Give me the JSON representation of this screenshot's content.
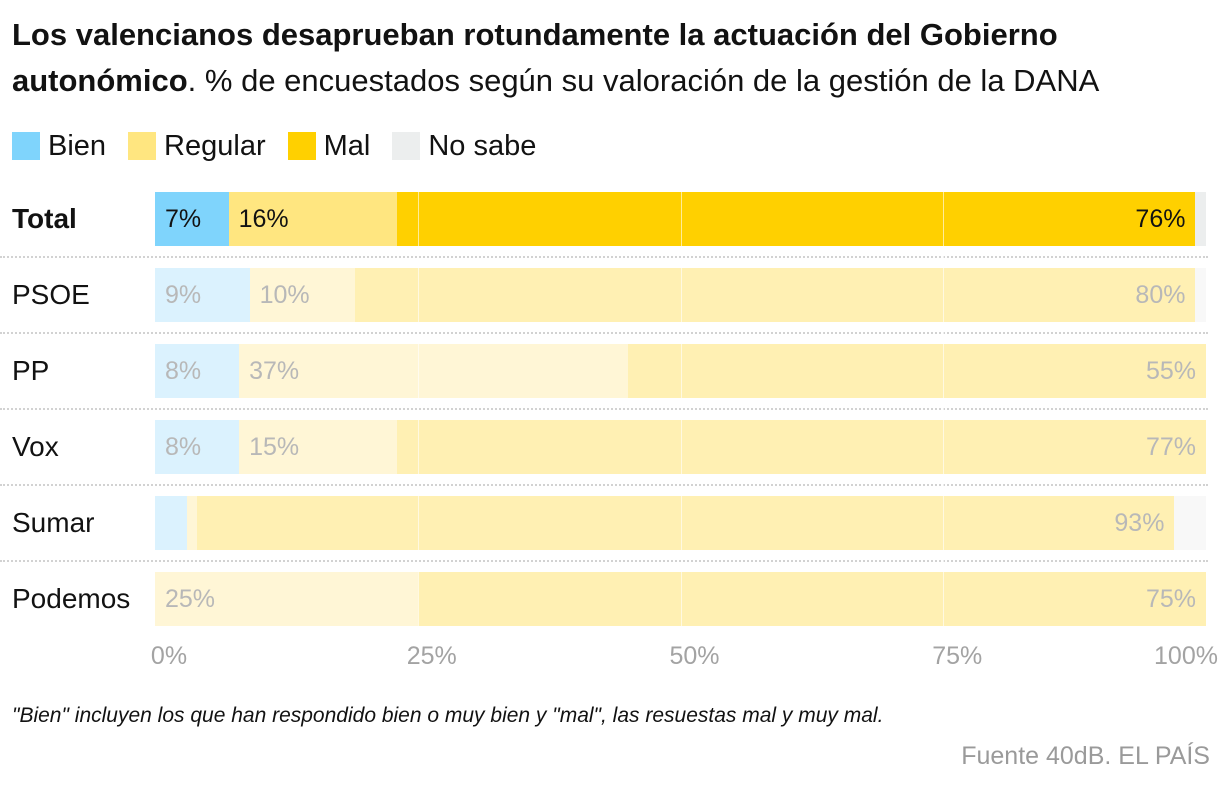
{
  "header": {
    "title_bold": "Los valencianos desaprueban rotundamente la actuación del Gobierno autonómico",
    "title_rest": ". % de encuestados según su valoración de la gestión de la DANA"
  },
  "legend": [
    {
      "label": "Bien",
      "color": "#7fd4fc"
    },
    {
      "label": "Regular",
      "color": "#ffe680"
    },
    {
      "label": "Mal",
      "color": "#ffd000"
    },
    {
      "label": "No sabe",
      "color": "#eceeee"
    }
  ],
  "chart_data": {
    "type": "bar",
    "orientation": "horizontal",
    "stacked": true,
    "categories": [
      "Total",
      "PSOE",
      "PP",
      "Vox",
      "Sumar",
      "Podemos"
    ],
    "highlighted": "Total",
    "series": [
      {
        "name": "Bien",
        "values": [
          7,
          9,
          8,
          8,
          3,
          0
        ],
        "labels": [
          "7%",
          "9%",
          "8%",
          "8%",
          "",
          ""
        ]
      },
      {
        "name": "Regular",
        "values": [
          16,
          10,
          37,
          15,
          1,
          25
        ],
        "labels": [
          "16%",
          "10%",
          "37%",
          "15%",
          "",
          "25%"
        ]
      },
      {
        "name": "Mal",
        "values": [
          76,
          80,
          55,
          77,
          93,
          75
        ],
        "labels": [
          "76%",
          "80%",
          "55%",
          "77%",
          "93%",
          "75%"
        ]
      },
      {
        "name": "No sabe",
        "values": [
          1,
          1,
          0,
          0,
          3,
          0
        ],
        "labels": [
          "",
          "",
          "",
          "",
          "",
          ""
        ]
      }
    ],
    "xlim": [
      0,
      100
    ],
    "xticks": [
      "0%",
      "25%",
      "50%",
      "75%",
      "100%"
    ],
    "grid": true,
    "legend_position": "top-left",
    "note": "\"Bien\" incluyen los que han respondido bien o muy bien y \"mal\", las resuestas mal y muy mal.",
    "source": "Fuente 40dB. EL PAÍS"
  }
}
